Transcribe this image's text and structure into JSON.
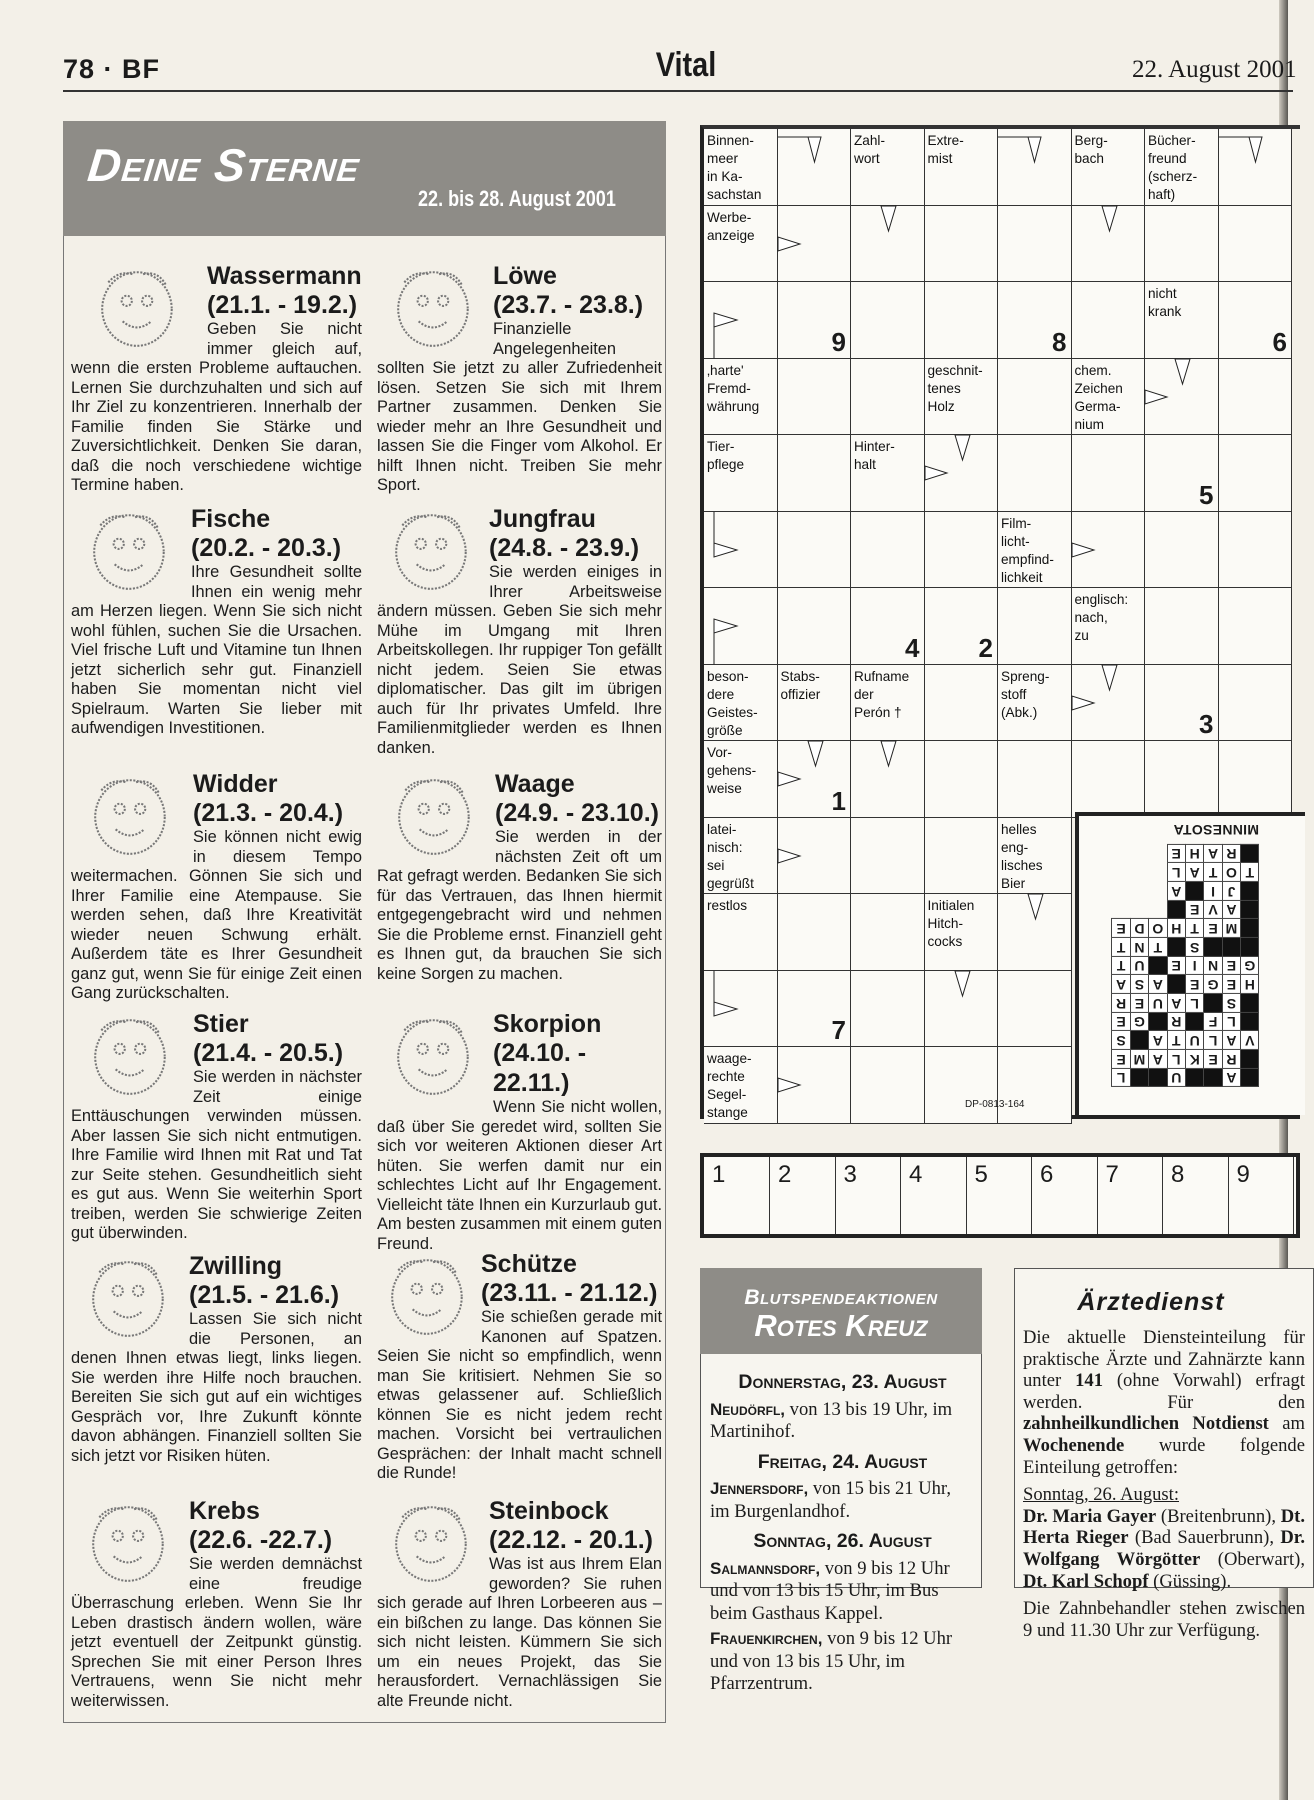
{
  "header": {
    "page": "78 · BF",
    "section": "Vital",
    "date": "22. August 2001"
  },
  "horoscope": {
    "title": "Deine Sterne",
    "range": "22. bis 28. August 2001",
    "signs": [
      {
        "icon": "aquarius-icon",
        "name": "Wassermann",
        "dates": "(21.1. - 19.2.)",
        "text": "Geben Sie nicht immer gleich auf, wenn die ersten Probleme auftauchen. Lernen Sie durchzuhalten und sich auf Ihr Ziel zu konzentrieren. Innerhalb der Familie finden Sie Stärke und Zuversichtlichkeit. Denken Sie daran, daß die noch verschiedene wichtige Termine haben."
      },
      {
        "icon": "pisces-icon",
        "name": "Fische",
        "dates": "(20.2. - 20.3.)",
        "text": "Ihre Gesundheit sollte Ihnen ein wenig mehr am Herzen liegen. Wenn Sie sich nicht wohl fühlen, suchen Sie die Ursachen. Viel frische Luft und Vitamine tun Ihnen jetzt sicherlich sehr gut. Finanziell haben Sie momentan nicht viel Spielraum. Warten Sie lieber mit aufwendigen Investitionen."
      },
      {
        "icon": "aries-icon",
        "name": "Widder",
        "dates": "(21.3. - 20.4.)",
        "text": "Sie können nicht ewig in diesem Tempo weitermachen. Gönnen Sie sich und Ihrer Familie eine Atempause. Sie werden sehen, daß Ihre Kreativität wieder neuen Schwung erhält. Außerdem täte es Ihrer Gesundheit ganz gut, wenn Sie für einige Zeit einen Gang zurückschalten."
      },
      {
        "icon": "taurus-icon",
        "name": "Stier",
        "dates": "(21.4. - 20.5.)",
        "text": "Sie werden in nächster Zeit einige Enttäuschungen verwinden müssen. Aber lassen Sie sich nicht entmutigen. Ihre Familie wird Ihnen mit Rat und Tat zur Seite stehen. Gesundheitlich sieht es gut aus. Wenn Sie weiterhin Sport treiben, werden Sie schwierige Zeiten gut überwinden."
      },
      {
        "icon": "gemini-icon",
        "name": "Zwilling",
        "dates": "(21.5. - 21.6.)",
        "text": "Lassen Sie sich nicht die Personen, an denen Ihnen etwas liegt, links liegen. Sie werden ihre Hilfe noch brauchen. Bereiten Sie sich gut auf ein wichtiges Gespräch vor, Ihre Zukunft könnte davon abhängen. Finanziell sollten Sie sich jetzt vor Risiken hüten."
      },
      {
        "icon": "cancer-icon",
        "name": "Krebs",
        "dates": "(22.6. -22.7.)",
        "text": "Sie werden demnächst eine freudige Überraschung erleben. Wenn Sie Ihr Leben drastisch ändern wollen, wäre jetzt eventuell der Zeitpunkt günstig. Sprechen Sie mit einer Person Ihres Vertrauens, wenn Sie nicht mehr weiterwissen."
      },
      {
        "icon": "leo-icon",
        "name": "Löwe",
        "dates": "(23.7. - 23.8.)",
        "text": "Finanzielle Angelegenheiten sollten Sie jetzt zu aller Zufriedenheit lösen. Setzen Sie sich mit Ihrem Partner zusammen. Denken Sie wieder mehr an Ihre Gesundheit und lassen Sie die Finger vom Alkohol. Er hilft Ihnen nicht. Treiben Sie mehr Sport."
      },
      {
        "icon": "virgo-icon",
        "name": "Jungfrau",
        "dates": "(24.8. - 23.9.)",
        "text": "Sie werden einiges in Ihrer Arbeitsweise ändern müssen. Geben Sie sich mehr Mühe im Umgang mit Ihren Arbeitskollegen. Ihr ruppiger Ton gefällt nicht jedem. Seien Sie etwas diplomatischer. Das gilt im übrigen auch für Ihr privates Umfeld. Ihre Familienmitglieder werden es Ihnen danken."
      },
      {
        "icon": "libra-icon",
        "name": "Waage",
        "dates": "(24.9. - 23.10.)",
        "text": "Sie werden in der nächsten Zeit oft um Rat gefragt werden. Bedanken Sie sich für das Vertrauen, das Ihnen hiermit entgegengebracht wird und nehmen Sie die Probleme ernst. Finanziell geht es Ihnen gut, da brauchen Sie sich keine Sorgen zu machen."
      },
      {
        "icon": "scorpio-icon",
        "name": "Skorpion",
        "dates": "(24.10. - 22.11.)",
        "text": "Wenn Sie nicht wollen, daß über Sie geredet wird, sollten Sie sich vor weiteren Aktionen dieser Art hüten. Sie werfen damit nur ein schlechtes Licht auf Ihr Engagement. Vielleicht täte Ihnen ein Kurzurlaub gut. Am besten zusammen mit einem guten Freund."
      },
      {
        "icon": "sagittarius-icon",
        "name": "Schütze",
        "dates": "(23.11. - 21.12.)",
        "text": "Sie schießen gerade mit Kanonen auf Spatzen. Seien Sie nicht so empfindlich, wenn man Sie kritisiert. Nehmen Sie so etwas gelassener auf. Schließlich können Sie es nicht jedem recht machen. Vorsicht bei vertraulichen Gesprächen: der Inhalt macht schnell die Runde!"
      },
      {
        "icon": "capricorn-icon",
        "name": "Steinbock",
        "dates": "(22.12. - 20.1.)",
        "text": "Was ist aus Ihrem Elan geworden? Sie ruhen sich gerade auf Ihren Lorbeeren aus – ein bißchen zu lange. Das können Sie sich nicht leisten. Kümmern Sie sich um ein neues Projekt, das Sie herausfordert. Vernachlässigen Sie alte Freunde nicht."
      }
    ]
  },
  "crossword": {
    "rows": [
      [
        {
          "clue": "Binnen-\nmeer\nin Ka-\nsachstan"
        },
        {
          "arrows": [
            "down-from-left"
          ]
        },
        {
          "clue": "Zahl-\nwort"
        },
        {
          "clue": "Extre-\nmist"
        },
        {
          "arrows": [
            "down-from-left"
          ]
        },
        {
          "clue": "Berg-\nbach"
        },
        {
          "clue": "Bücher-\nfreund\n(scherz-\nhaft)"
        },
        {
          "arrows": [
            "down-from-left"
          ]
        }
      ],
      [
        {
          "clue": "Werbe-\nanzeige"
        },
        {
          "arrows": [
            "right"
          ]
        },
        {
          "arrows": [
            "down"
          ]
        },
        {},
        {},
        {
          "arrows": [
            "down"
          ]
        },
        {},
        {}
      ],
      [
        {
          "arrows": [
            "right-from-bottom"
          ]
        },
        {
          "num": "9"
        },
        {},
        {},
        {
          "num": "8"
        },
        {},
        {
          "clue": "nicht\nkrank"
        },
        {
          "num": "6"
        }
      ],
      [
        {
          "clue": "‚harte'\nFremd-\nwährung"
        },
        {},
        {},
        {
          "clue": "geschnit-\ntenes\nHolz"
        },
        {},
        {
          "clue": "chem.\nZeichen\nGerma-\nnium"
        },
        {
          "arrows": [
            "right",
            "down"
          ]
        },
        {}
      ],
      [
        {
          "clue": "Tier-\npflege"
        },
        {},
        {
          "clue": "Hinter-\nhalt"
        },
        {
          "arrows": [
            "right",
            "down"
          ]
        },
        {},
        {},
        {
          "num": "5"
        },
        {}
      ],
      [
        {
          "arrows": [
            "right-from-top"
          ]
        },
        {},
        {},
        {},
        {
          "clue": "Film-\nlicht-\nempfind-\nlichkeit"
        },
        {
          "arrows": [
            "right"
          ]
        },
        {},
        {}
      ],
      [
        {
          "arrows": [
            "right-from-bottom"
          ]
        },
        {},
        {
          "num": "4"
        },
        {
          "num": "2"
        },
        {},
        {
          "clue": "englisch:\nnach,\nzu"
        },
        {},
        {}
      ],
      [
        {
          "clue": "beson-\ndere\nGeistes-\ngröße"
        },
        {
          "clue": "Stabs-\noffizier"
        },
        {
          "clue": "Rufname\nder\nPerón †"
        },
        {},
        {
          "clue": "Spreng-\nstoff\n(Abk.)"
        },
        {
          "arrows": [
            "right",
            "down"
          ]
        },
        {
          "num": "3"
        },
        {}
      ],
      [
        {
          "clue": "Vor-\ngehens-\nweise"
        },
        {
          "arrows": [
            "right",
            "down"
          ],
          "num": "1"
        },
        {
          "arrows": [
            "down"
          ]
        },
        {},
        {},
        {},
        {},
        {}
      ],
      [
        {
          "clue": "latei-\nnisch:\nsei\ngegrüßt"
        },
        {
          "arrows": [
            "right"
          ]
        },
        {},
        {},
        {
          "clue": "helles\neng-\nlisches\nBier"
        },
        null,
        null,
        null
      ],
      [
        {
          "clue": "restlos"
        },
        {},
        {},
        {
          "clue": "Initialen\nHitch-\ncocks"
        },
        {
          "arrows": [
            "down"
          ]
        },
        null,
        null,
        null
      ],
      [
        {
          "arrows": [
            "right-from-top"
          ]
        },
        {
          "num": "7"
        },
        {},
        {
          "arrows": [
            "down"
          ]
        },
        {},
        null,
        null,
        null
      ],
      [
        {
          "clue": "waage-\nrechte\nSegel-\nstange"
        },
        {
          "arrows": [
            "right"
          ]
        },
        {},
        {},
        {},
        null,
        null,
        null
      ]
    ],
    "code": "DP-0813-164",
    "solution_label": "MINNESOTA",
    "solution_grid": [
      "#A##U##L",
      "#REKLAME",
      "VALUTA#S",
      "#LF#R#GE",
      "#S#LAUER",
      "HEGE#ASA",
      "GENIE#UT",
      "###S#TNT",
      "#METHODE",
      "#AVE#...",
      "#JI#A...",
      "TOTAL...",
      "#RAHE..."
    ],
    "solution_strip": [
      "1",
      "2",
      "3",
      "4",
      "5",
      "6",
      "7",
      "8",
      "9"
    ]
  },
  "blood": {
    "title_1": "Blutspendeaktionen",
    "title_2": "Rotes Kreuz",
    "days": [
      {
        "day": "Donnerstag, 23. August",
        "entries": [
          {
            "place": "Neudörfl,",
            "text": " von 13 bis 19 Uhr, im Martinihof."
          }
        ]
      },
      {
        "day": "Freitag, 24. August",
        "entries": [
          {
            "place": "Jennersdorf,",
            "text": " von 15 bis 21 Uhr, im Burgenlandhof."
          }
        ]
      },
      {
        "day": "Sonntag, 26. August",
        "entries": [
          {
            "place": "Salmannsdorf,",
            "text": " von 9 bis 12 Uhr und von 13 bis 15 Uhr, im Bus beim Gasthaus Kappel."
          },
          {
            "place": "Frauenkirchen,",
            "text": " von 9 bis 12 Uhr und von 13 bis 15 Uhr, im Pfarrzentrum."
          }
        ]
      }
    ]
  },
  "aerzte": {
    "title": "Ärztedienst",
    "intro": [
      {
        "t": "Die aktuelle Diensteinteilung für praktische Ärzte und Zahnärzte kann unter ",
        "b": false
      },
      {
        "t": "141",
        "b": true
      },
      {
        "t": " (ohne Vorwahl) erfragt werden. Für den ",
        "b": false
      },
      {
        "t": "zahnheilkundlichen Notdienst",
        "b": true
      },
      {
        "t": " am ",
        "b": false
      },
      {
        "t": "Wochenende",
        "b": true
      },
      {
        "t": " wurde folgende Einteilung getroffen:",
        "b": false
      }
    ],
    "date": "Sonntag, 26. August:",
    "list": [
      {
        "t": "Dr. Maria Gayer",
        "b": true
      },
      {
        "t": " (Breitenbrunn), ",
        "b": false
      },
      {
        "t": "Dt. Herta Rieger",
        "b": true
      },
      {
        "t": " (Bad Sauerbrunn), ",
        "b": false
      },
      {
        "t": "Dr. Wolfgang Wörgötter",
        "b": true
      },
      {
        "t": " (Oberwart), ",
        "b": false
      },
      {
        "t": "Dt. Karl Schopf",
        "b": true
      },
      {
        "t": " (Güssing).",
        "b": false
      }
    ],
    "outro": "Die Zahnbehandler stehen zwischen 9 und 11.30 Uhr zur Verfügung."
  }
}
